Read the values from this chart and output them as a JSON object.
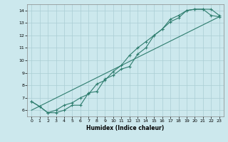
{
  "xlabel": "Humidex (Indice chaleur)",
  "ylabel": "",
  "bg_color": "#cce8ed",
  "grid_color": "#aacdd4",
  "line_color": "#2e7d6e",
  "xlim": [
    -0.5,
    23.5
  ],
  "ylim": [
    5.5,
    14.5
  ],
  "xticks": [
    0,
    1,
    2,
    3,
    4,
    5,
    6,
    7,
    8,
    9,
    10,
    11,
    12,
    13,
    14,
    15,
    16,
    17,
    18,
    19,
    20,
    21,
    22,
    23
  ],
  "yticks": [
    6,
    7,
    8,
    9,
    10,
    11,
    12,
    13,
    14
  ],
  "line1_x": [
    0,
    1,
    2,
    3,
    4,
    5,
    6,
    7,
    8,
    9,
    10,
    11,
    12,
    13,
    14,
    15,
    16,
    17,
    18,
    19,
    20,
    21,
    22,
    23
  ],
  "line1_y": [
    6.7,
    6.3,
    5.8,
    5.8,
    6.0,
    6.4,
    6.4,
    7.4,
    7.5,
    8.5,
    8.8,
    9.3,
    9.5,
    10.5,
    11.0,
    12.0,
    12.5,
    13.1,
    13.4,
    14.0,
    14.1,
    14.1,
    14.1,
    13.6
  ],
  "line2_x": [
    0,
    1,
    2,
    3,
    4,
    5,
    6,
    7,
    8,
    9,
    10,
    11,
    12,
    13,
    14,
    15,
    16,
    17,
    18,
    19,
    20,
    21,
    22,
    23
  ],
  "line2_y": [
    6.7,
    6.3,
    5.8,
    6.0,
    6.4,
    6.6,
    7.0,
    7.3,
    8.1,
    8.4,
    9.1,
    9.6,
    10.4,
    11.0,
    11.5,
    12.0,
    12.5,
    13.3,
    13.6,
    14.0,
    14.1,
    14.1,
    13.6,
    13.5
  ],
  "line3_x": [
    0,
    23
  ],
  "line3_y": [
    6.0,
    13.5
  ]
}
